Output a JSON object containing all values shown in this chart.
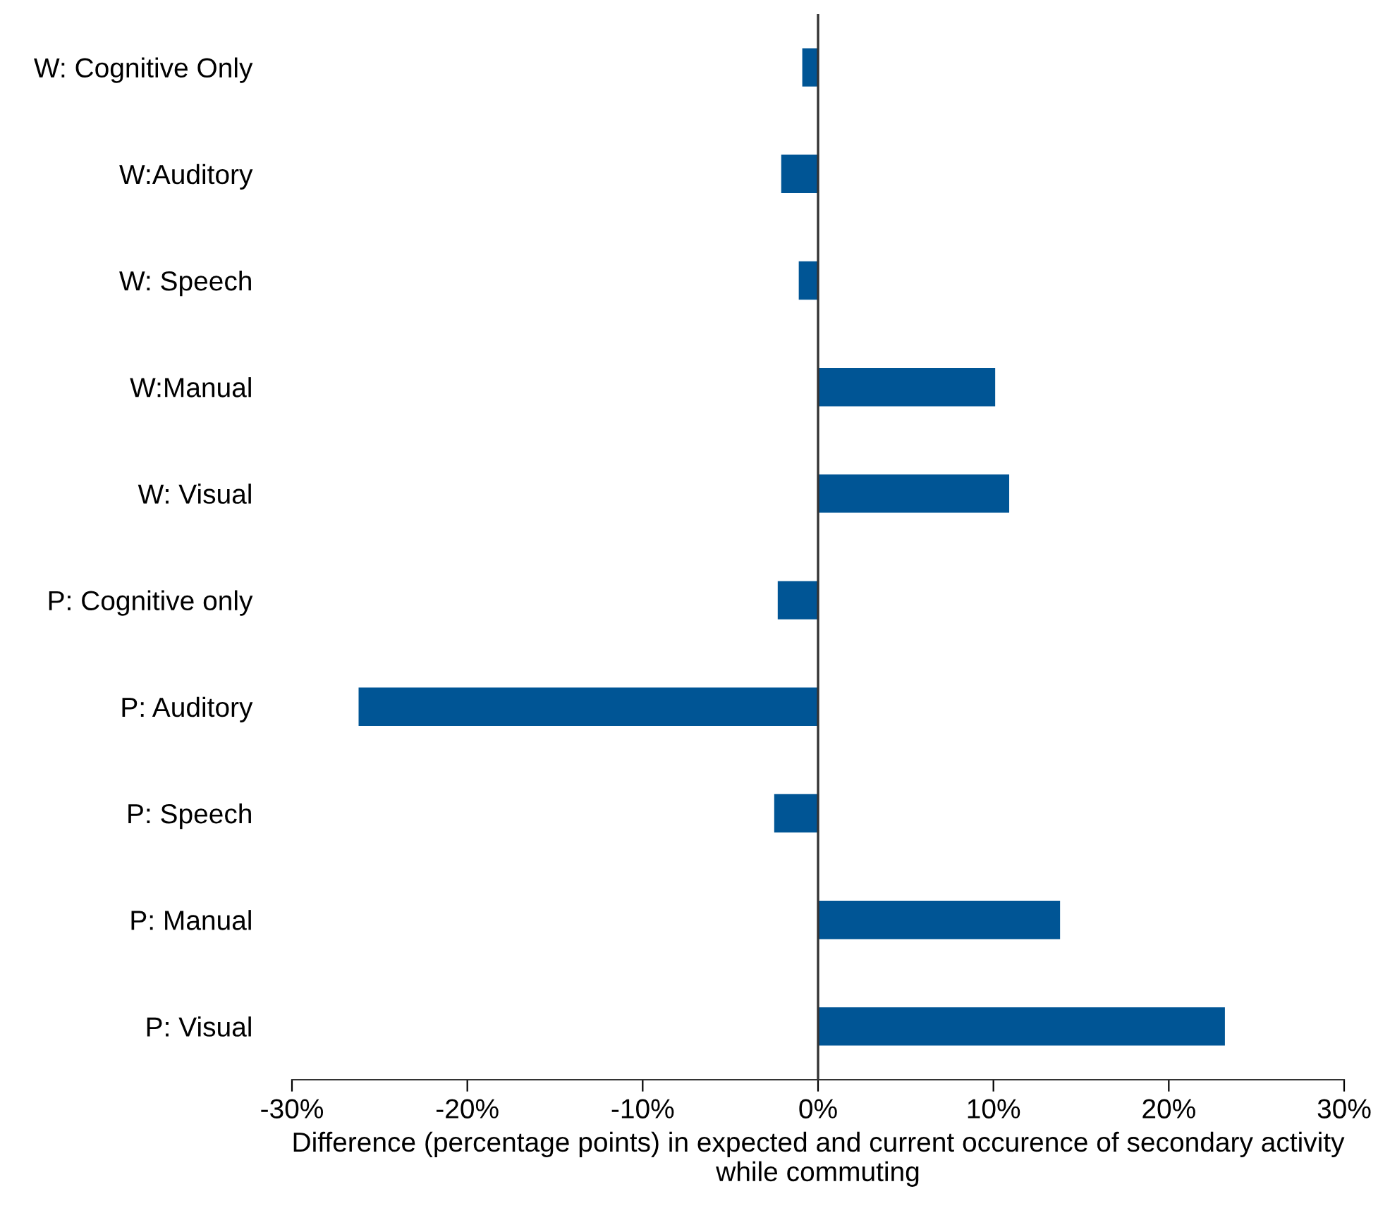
{
  "chart_data": {
    "type": "bar",
    "orientation": "horizontal",
    "xlabel": "Difference (percentage points) in expected and current occurence of secondary activity while commuting",
    "categories": [
      "W: Cognitive Only",
      "W:Auditory",
      "W: Speech",
      "W:Manual",
      "W: Visual",
      "P: Cognitive only",
      "P: Auditory",
      "P: Speech",
      "P: Manual",
      "P: Visual"
    ],
    "values": [
      -0.9,
      -2.1,
      -1.1,
      10.1,
      10.9,
      -2.3,
      -26.2,
      -2.5,
      13.8,
      23.2
    ],
    "color": "#005595",
    "xlim": [
      -30,
      30
    ],
    "xticks": [
      {
        "value": -30,
        "label": "-30%"
      },
      {
        "value": -20,
        "label": "-20%"
      },
      {
        "value": -10,
        "label": "-10%"
      },
      {
        "value": 0,
        "label": "0%"
      },
      {
        "value": 10,
        "label": "10%"
      },
      {
        "value": 20,
        "label": "20%"
      },
      {
        "value": 30,
        "label": "30%"
      }
    ],
    "legend": false
  }
}
